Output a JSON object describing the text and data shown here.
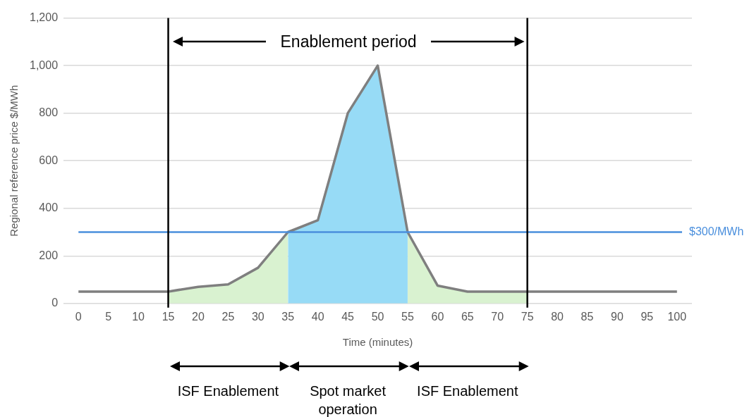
{
  "chart_data": {
    "type": "line",
    "xlabel": "Time (minutes)",
    "ylabel": "Regional reference price $/MWh",
    "xlim": [
      -2.5,
      102.5
    ],
    "xticks": [
      0,
      5,
      10,
      15,
      20,
      25,
      30,
      35,
      40,
      45,
      50,
      55,
      60,
      65,
      70,
      75,
      80,
      85,
      90,
      95,
      100
    ],
    "ylim": [
      0,
      1200
    ],
    "yticks": [
      0,
      200,
      400,
      600,
      800,
      {
        "value": 1000,
        "label": "1,000"
      },
      {
        "value": 1200,
        "label": "1,200"
      }
    ],
    "grid": "y",
    "marker": "none",
    "line_style": "solid",
    "series": [
      {
        "type": "area",
        "color": "#d9f2d0",
        "x": [
          15,
          20,
          25,
          30,
          35
        ],
        "values": [
          50,
          70,
          80,
          150,
          300
        ]
      },
      {
        "type": "area",
        "color": "#97dbf6",
        "x": [
          35,
          40,
          45,
          50,
          55
        ],
        "values": [
          300,
          350,
          800,
          1000,
          300
        ]
      },
      {
        "type": "area",
        "color": "#d9f2d0",
        "x": [
          55,
          60,
          65,
          70,
          75
        ],
        "values": [
          300,
          75,
          50,
          50,
          50
        ]
      },
      {
        "type": "line",
        "color": "#7f7f7f",
        "x": [
          0,
          5,
          10,
          15,
          20,
          25,
          30,
          35,
          40,
          45,
          50,
          55,
          60,
          65,
          70,
          75,
          80,
          85,
          90,
          95,
          100
        ],
        "values": [
          50,
          50,
          50,
          50,
          70,
          80,
          150,
          300,
          350,
          800,
          1000,
          300,
          75,
          50,
          50,
          50,
          50,
          50,
          50,
          50,
          50
        ]
      }
    ],
    "ref_lines": [
      {
        "axis": "y",
        "value": 300,
        "label": "$300/MWh",
        "color": "#4a8fdd"
      },
      {
        "axis": "x",
        "value": 15,
        "color": "#000000"
      },
      {
        "axis": "x",
        "value": 75,
        "color": "#000000"
      }
    ],
    "annotations": [
      "Enablement period",
      "ISF Enablement",
      "Spot market operation",
      "ISF Enablement"
    ]
  }
}
